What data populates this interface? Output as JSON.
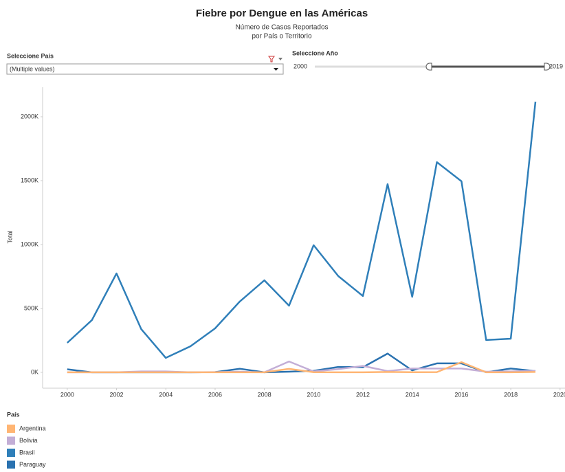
{
  "controls": {
    "country_label": "Seleccione País",
    "country_value": "(Multiple values)",
    "year_label": "Seleccione Año",
    "year_min": "2000",
    "year_max": "2019"
  },
  "chart_data": {
    "type": "line",
    "title": "Fiebre por Dengue en las Américas",
    "subtitle": [
      "Número de Casos Reportados",
      "por País o Territorio"
    ],
    "y_label": "Total",
    "legend_title": "País",
    "x": [
      2000,
      2001,
      2002,
      2003,
      2004,
      2005,
      2006,
      2007,
      2008,
      2009,
      2010,
      2011,
      2012,
      2013,
      2014,
      2015,
      2016,
      2017,
      2018,
      2019
    ],
    "series": [
      {
        "name": "Brasil",
        "color": "#2f7fb9",
        "values": [
          231000,
          409000,
          774000,
          339000,
          113000,
          204000,
          344000,
          554000,
          720000,
          522000,
          995000,
          753000,
          597000,
          1473000,
          591000,
          1645000,
          1495000,
          253000,
          263000,
          2118000
        ]
      },
      {
        "name": "Paraguay",
        "color": "#2a72b0",
        "values": [
          24000,
          0,
          0,
          0,
          0,
          0,
          2000,
          28000,
          0,
          5000,
          12000,
          42000,
          40000,
          147000,
          15000,
          70000,
          70000,
          1000,
          30000,
          10000
        ]
      },
      {
        "name": "Bolivia",
        "color": "#c3aed6",
        "values": [
          0,
          0,
          0,
          7000,
          7000,
          0,
          2000,
          5000,
          0,
          85000,
          7000,
          25000,
          50000,
          10000,
          30000,
          30000,
          30000,
          5000,
          7000,
          12000
        ]
      },
      {
        "name": "Argentina",
        "color": "#ffb573",
        "values": [
          0,
          0,
          0,
          0,
          0,
          0,
          0,
          0,
          0,
          27000,
          1000,
          0,
          0,
          3000,
          1000,
          2000,
          80000,
          0,
          0,
          3000
        ]
      }
    ],
    "legend_order": [
      3,
      2,
      0,
      1
    ],
    "xlim": [
      1999,
      2020.2
    ],
    "xticks": [
      2000,
      2002,
      2004,
      2006,
      2008,
      2010,
      2012,
      2014,
      2016,
      2018,
      2020
    ],
    "ylim": [
      -124000,
      2231000
    ],
    "yticks": [
      {
        "value": 0,
        "label": "0K"
      },
      {
        "value": 500000,
        "label": "500K"
      },
      {
        "value": 1000000,
        "label": "1000K"
      },
      {
        "value": 1500000,
        "label": "1500K"
      },
      {
        "value": 2000000,
        "label": "2000K"
      }
    ]
  }
}
